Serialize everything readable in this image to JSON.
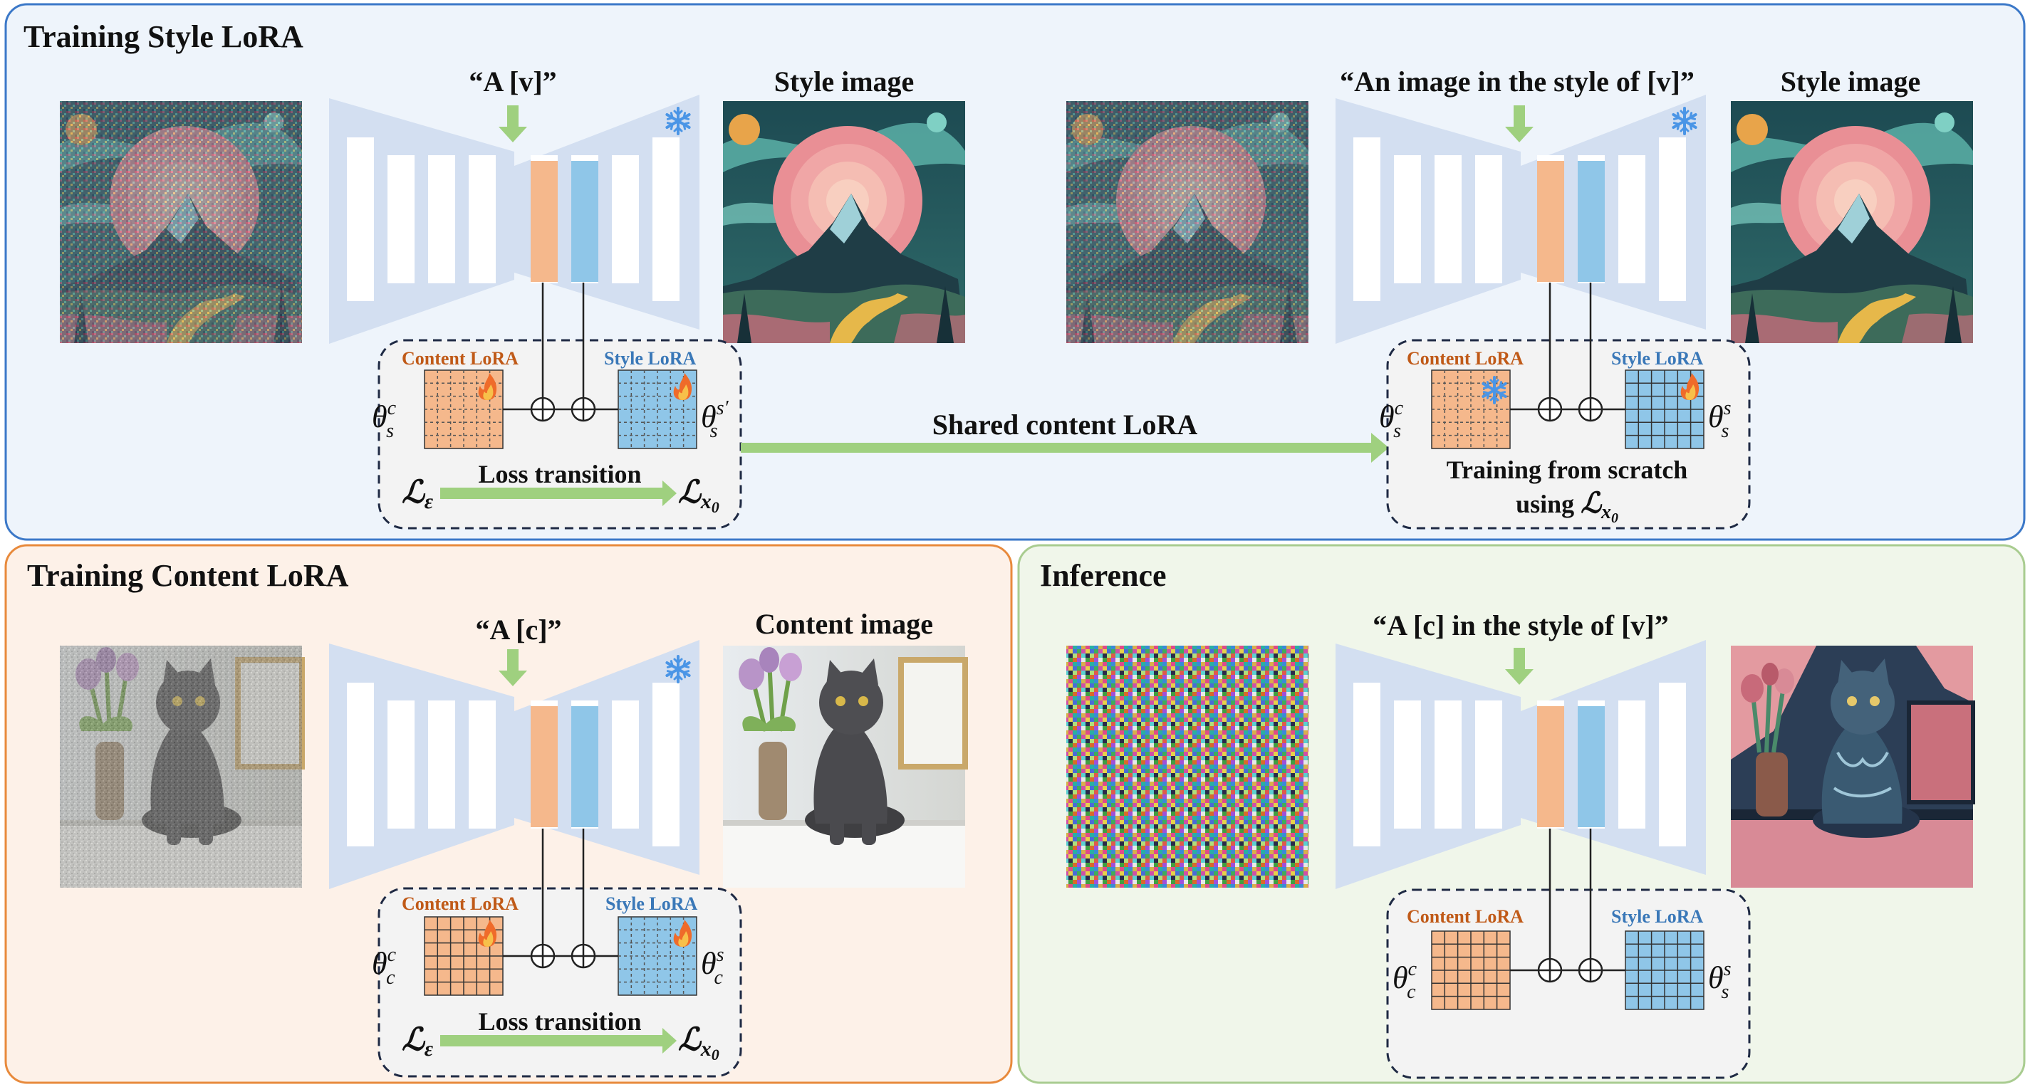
{
  "panels": {
    "style": {
      "title": "Training Style LoRA"
    },
    "content": {
      "title": "Training Content LoRA"
    },
    "inference": {
      "title": "Inference"
    }
  },
  "prompts": {
    "style_a": "“A  [v]”",
    "style_b": "“An image in the style of [v]”",
    "content": "“A  [c]”",
    "inference": "“A [c] in the style of [v]”"
  },
  "image_labels": {
    "style_a": "Style image",
    "style_b": "Style image",
    "content": "Content image"
  },
  "lora_labels": {
    "content": "Content LoRA",
    "style": "Style LoRA"
  },
  "loss": {
    "transition": "Loss transition",
    "eps_symbol": "ℒ",
    "eps_sub": "ε",
    "x0_symbol": "ℒ",
    "x0_sub": "x",
    "x0_subsub": "0"
  },
  "shared_label": "Shared content LoRA",
  "scratch": {
    "line1": "Training from scratch",
    "line2": "using "
  },
  "params": {
    "theta": "θ",
    "s_c": {
      "sup": "c",
      "sub": "s"
    },
    "s_s_prime": {
      "sup": "s′",
      "sub": "s"
    },
    "s_s": {
      "sup": "s",
      "sub": "s"
    },
    "c_c": {
      "sup": "c",
      "sub": "c"
    },
    "c_s": {
      "sup": "s",
      "sub": "c"
    }
  },
  "icons": {
    "frozen": "snowflake-icon",
    "trainable": "fire-icon",
    "add": "circle-plus-icon"
  },
  "colors": {
    "style_panel_bg": "#eef4fb",
    "style_panel_border": "#3b78c8",
    "content_panel_bg": "#fdf1e8",
    "content_panel_border": "#e88a3c",
    "inference_panel_bg": "#f0f6ea",
    "inference_panel_border": "#a9cc90",
    "unet": "#d3dff1",
    "content_lora": "#f5b88c",
    "style_lora": "#8fc6e8",
    "content_label": "#c05a18",
    "style_label": "#3a78b8",
    "arrow_green": "#9fd07f",
    "snowflake": "#4a95e6"
  }
}
